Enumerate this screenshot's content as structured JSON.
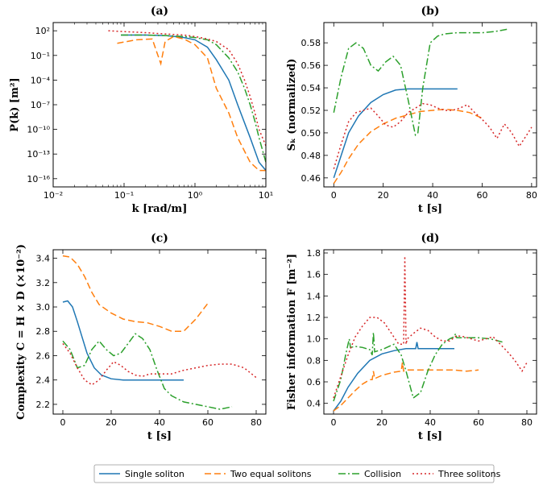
{
  "colors": {
    "single": "#1f77b4",
    "two": "#ff7f0e",
    "collision": "#2ca02c",
    "three": "#d62728"
  },
  "legend": [
    "Single soliton",
    "Two equal solitons",
    "Collision",
    "Three solitons"
  ],
  "chart_data": [
    {
      "id": "a",
      "type": "line",
      "title": "(a)",
      "xlabel": "k [rad/m]",
      "ylabel": "P(k) [m²]",
      "xscale": "log",
      "yscale": "log",
      "xlim": [
        0.01,
        10
      ],
      "ylim": [
        1e-17,
        1000.0
      ],
      "xticks": [
        "10⁻²",
        "10⁻¹",
        "10⁰",
        "10¹"
      ],
      "yticks": [
        "10²",
        "10⁻¹",
        "10⁻⁴",
        "10⁻⁷",
        "10⁻¹⁰",
        "10⁻¹³",
        "10⁻¹⁶"
      ],
      "series": [
        {
          "name": "Single soliton",
          "x": [
            0.09,
            0.2,
            0.4,
            0.7,
            1,
            1.5,
            2,
            3,
            4,
            6,
            8,
            10
          ],
          "y": [
            30,
            30,
            25,
            15,
            8,
            1,
            0.03,
            0.0001,
            1e-07,
            1e-11,
            1e-14,
            1e-15
          ]
        },
        {
          "name": "Two equal solitons",
          "x": [
            0.08,
            0.15,
            0.25,
            0.3,
            0.33,
            0.38,
            0.5,
            0.7,
            1,
            1.5,
            2,
            3,
            4,
            6,
            8,
            10
          ],
          "y": [
            3,
            8,
            10,
            0.1,
            0.01,
            5,
            20,
            10,
            2,
            0.05,
            1e-05,
            1e-08,
            1e-11,
            1e-14,
            1e-15,
            1e-15
          ]
        },
        {
          "name": "Collision",
          "x": [
            0.09,
            0.2,
            0.4,
            0.7,
            1,
            1.5,
            2,
            3,
            4,
            5,
            6,
            7,
            8,
            10
          ],
          "y": [
            30,
            30,
            25,
            20,
            15,
            8,
            2,
            0.05,
            0.001,
            1e-05,
            1e-07,
            1e-09,
            1e-11,
            1e-14
          ]
        },
        {
          "name": "Three solitons",
          "x": [
            0.06,
            0.1,
            0.2,
            0.4,
            0.7,
            1,
            1.5,
            2,
            3,
            4,
            5,
            6,
            7,
            8,
            10
          ],
          "y": [
            100,
            80,
            60,
            40,
            30,
            20,
            10,
            5,
            0.5,
            0.01,
            0.0001,
            1e-06,
            1e-08,
            1e-10,
            1e-12
          ]
        }
      ]
    },
    {
      "id": "b",
      "type": "line",
      "title": "(b)",
      "xlabel": "t [s]",
      "ylabel": "Sₖ (normalized)",
      "xlim": [
        -4,
        82
      ],
      "ylim": [
        0.452,
        0.598
      ],
      "xticks": [
        0,
        20,
        40,
        60,
        80
      ],
      "yticks": [
        0.46,
        0.48,
        0.5,
        0.52,
        0.54,
        0.56,
        0.58
      ],
      "series": [
        {
          "name": "Single soliton",
          "x": [
            0,
            3,
            6,
            10,
            15,
            20,
            25,
            30,
            35,
            40,
            45,
            50
          ],
          "y": [
            0.46,
            0.48,
            0.5,
            0.515,
            0.527,
            0.534,
            0.538,
            0.539,
            0.539,
            0.539,
            0.539,
            0.539
          ]
        },
        {
          "name": "Two equal solitons",
          "x": [
            0,
            3,
            6,
            10,
            15,
            20,
            25,
            30,
            35,
            40,
            45,
            50,
            55,
            60
          ],
          "y": [
            0.455,
            0.465,
            0.477,
            0.49,
            0.501,
            0.508,
            0.513,
            0.516,
            0.519,
            0.52,
            0.521,
            0.52,
            0.518,
            0.513
          ]
        },
        {
          "name": "Collision",
          "x": [
            0,
            3,
            6,
            9,
            12,
            15,
            18,
            21,
            24,
            27,
            30,
            33,
            34,
            36,
            39,
            42,
            45,
            50,
            55,
            60,
            65,
            70
          ],
          "y": [
            0.518,
            0.55,
            0.575,
            0.58,
            0.575,
            0.56,
            0.555,
            0.563,
            0.568,
            0.56,
            0.53,
            0.498,
            0.5,
            0.54,
            0.58,
            0.586,
            0.588,
            0.589,
            0.589,
            0.589,
            0.59,
            0.592
          ]
        },
        {
          "name": "Three solitons",
          "x": [
            0,
            3,
            6,
            9,
            12,
            15,
            18,
            21,
            24,
            27,
            30,
            33,
            36,
            39,
            42,
            45,
            48,
            51,
            54,
            57,
            60,
            63,
            66,
            69,
            72,
            75,
            78,
            80
          ],
          "y": [
            0.468,
            0.49,
            0.51,
            0.518,
            0.52,
            0.522,
            0.515,
            0.507,
            0.505,
            0.51,
            0.518,
            0.522,
            0.526,
            0.525,
            0.522,
            0.52,
            0.52,
            0.522,
            0.525,
            0.518,
            0.512,
            0.505,
            0.495,
            0.508,
            0.5,
            0.488,
            0.498,
            0.505
          ]
        }
      ]
    },
    {
      "id": "c",
      "type": "line",
      "title": "(c)",
      "xlabel": "t [s]",
      "ylabel": "Complexity C = H × D (×10⁻²)",
      "xlim": [
        -4,
        84
      ],
      "ylim": [
        2.12,
        3.47
      ],
      "xticks": [
        0,
        20,
        40,
        60,
        80
      ],
      "yticks": [
        2.2,
        2.4,
        2.6,
        2.8,
        3.0,
        3.2,
        3.4
      ],
      "series": [
        {
          "name": "Single soliton",
          "x": [
            0,
            2,
            4,
            6,
            8,
            10,
            13,
            16,
            20,
            25,
            30,
            35,
            40,
            45,
            50
          ],
          "y": [
            3.04,
            3.05,
            3.0,
            2.88,
            2.75,
            2.62,
            2.5,
            2.44,
            2.41,
            2.4,
            2.4,
            2.4,
            2.4,
            2.4,
            2.4
          ]
        },
        {
          "name": "Two equal solitons",
          "x": [
            0,
            3,
            6,
            9,
            12,
            15,
            20,
            25,
            30,
            35,
            40,
            45,
            50,
            55,
            60
          ],
          "y": [
            3.42,
            3.41,
            3.35,
            3.25,
            3.12,
            3.02,
            2.95,
            2.9,
            2.88,
            2.87,
            2.84,
            2.8,
            2.8,
            2.9,
            3.03
          ]
        },
        {
          "name": "Collision",
          "x": [
            0,
            3,
            6,
            9,
            12,
            15,
            18,
            21,
            24,
            27,
            30,
            33,
            36,
            39,
            42,
            45,
            50,
            55,
            60,
            65,
            70
          ],
          "y": [
            2.72,
            2.65,
            2.5,
            2.52,
            2.65,
            2.72,
            2.65,
            2.6,
            2.62,
            2.7,
            2.78,
            2.74,
            2.65,
            2.48,
            2.33,
            2.27,
            2.22,
            2.2,
            2.18,
            2.16,
            2.18
          ]
        },
        {
          "name": "Three solitons",
          "x": [
            0,
            3,
            6,
            9,
            12,
            15,
            18,
            21,
            24,
            27,
            30,
            33,
            36,
            40,
            45,
            50,
            55,
            60,
            65,
            70,
            75,
            80
          ],
          "y": [
            2.7,
            2.62,
            2.5,
            2.4,
            2.36,
            2.4,
            2.48,
            2.55,
            2.52,
            2.47,
            2.44,
            2.43,
            2.45,
            2.45,
            2.45,
            2.48,
            2.5,
            2.52,
            2.53,
            2.53,
            2.5,
            2.42
          ]
        }
      ]
    },
    {
      "id": "d",
      "type": "line",
      "title": "(d)",
      "xlabel": "t [s]",
      "ylabel": "Fisher information F [m⁻²]",
      "xlim": [
        -4,
        84
      ],
      "ylim": [
        0.3,
        1.83
      ],
      "xticks": [
        0,
        20,
        40,
        60,
        80
      ],
      "yticks": [
        0.4,
        0.6,
        0.8,
        1.0,
        1.2,
        1.4,
        1.6,
        1.8
      ],
      "series": [
        {
          "name": "Single soliton",
          "x": [
            0,
            3,
            6,
            10,
            15,
            20,
            25,
            30,
            34,
            34.5,
            35,
            35.5,
            40,
            45,
            50
          ],
          "y": [
            0.33,
            0.42,
            0.55,
            0.68,
            0.8,
            0.86,
            0.89,
            0.91,
            0.91,
            0.97,
            0.91,
            0.91,
            0.91,
            0.91,
            0.91
          ]
        },
        {
          "name": "Two equal solitons",
          "x": [
            0,
            3,
            6,
            9,
            12,
            15,
            16,
            16.5,
            17,
            20,
            25,
            28,
            28.5,
            29,
            30,
            35,
            40,
            45,
            50,
            55,
            60
          ],
          "y": [
            0.33,
            0.38,
            0.45,
            0.52,
            0.58,
            0.62,
            0.62,
            0.7,
            0.63,
            0.66,
            0.69,
            0.7,
            0.78,
            0.7,
            0.71,
            0.71,
            0.71,
            0.71,
            0.71,
            0.7,
            0.71
          ]
        },
        {
          "name": "Collision",
          "x": [
            0,
            3,
            5,
            6,
            6.5,
            7,
            9,
            12,
            15,
            16,
            16.5,
            17,
            20,
            25,
            28,
            30,
            33,
            36,
            39,
            42,
            45,
            48,
            50,
            50.5,
            51,
            55,
            60,
            65,
            70
          ],
          "y": [
            0.42,
            0.62,
            0.85,
            0.95,
            1.0,
            0.92,
            0.93,
            0.92,
            0.9,
            0.85,
            1.06,
            0.88,
            0.9,
            0.95,
            0.85,
            0.7,
            0.45,
            0.5,
            0.7,
            0.85,
            0.95,
            1.0,
            1.02,
            1.05,
            1.01,
            1.01,
            1.01,
            1.0,
            0.97
          ]
        },
        {
          "name": "Three solitons",
          "x": [
            0,
            3,
            6,
            9,
            12,
            15,
            18,
            21,
            24,
            27,
            29,
            29.5,
            30,
            30.5,
            33,
            36,
            39,
            42,
            45,
            48,
            51,
            54,
            57,
            60,
            63,
            66,
            69,
            72,
            75,
            78,
            80
          ],
          "y": [
            0.45,
            0.65,
            0.85,
            1.02,
            1.12,
            1.2,
            1.2,
            1.15,
            1.05,
            0.95,
            0.95,
            1.77,
            0.95,
            1.0,
            1.05,
            1.1,
            1.08,
            1.02,
            0.98,
            0.98,
            1.03,
            1.02,
            1.0,
            0.98,
            1.0,
            1.02,
            0.95,
            0.88,
            0.8,
            0.7,
            0.78
          ]
        }
      ]
    }
  ]
}
